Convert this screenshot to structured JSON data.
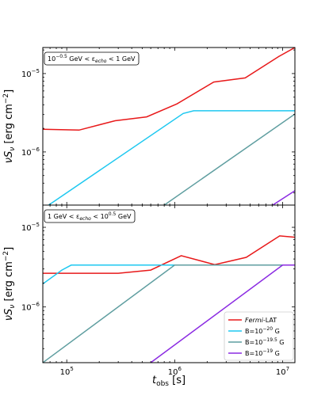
{
  "chart_data": [
    {
      "type": "line",
      "panel": "top",
      "xscale": "log",
      "yscale": "log",
      "xlim": [
        60000,
        13000000
      ],
      "ylim": [
        2.1e-07,
        2.15e-05
      ],
      "ylabel": "νS_ν [erg cm⁻²]",
      "ylabel_main": "νS",
      "ylabel_sub": "ν",
      "ylabel_unit": " [erg cm",
      "ylabel_sup": "−2",
      "ylabel_end": "]",
      "annotation": {
        "lead": "10",
        "lead_sup": "−0.5",
        "mid": " GeV  < ε",
        "mid_sub": "echo",
        "tail": " < 1 GeV"
      },
      "yticks": [
        {
          "value": 1e-06,
          "base": "10",
          "exp": "−6"
        },
        {
          "value": 1e-05,
          "base": "10",
          "exp": "−5"
        }
      ],
      "series": [
        {
          "name": "Fermi-LAT",
          "color": "#e8191a",
          "x": [
            60000,
            130000,
            280000,
            550000,
            1050000,
            2300000,
            4500000,
            9200000,
            13000000
          ],
          "y": [
            1.95e-06,
            1.9e-06,
            2.5e-06,
            2.8e-06,
            4.1e-06,
            7.8e-06,
            8.8e-06,
            1.65e-05,
            2.15e-05
          ]
        },
        {
          "name": "B=10⁻²⁰ G",
          "color": "#1ec8f0",
          "x": [
            68000,
            1200000,
            1500000,
            13000000
          ],
          "y": [
            2.1e-07,
            3.1e-06,
            3.35e-06,
            3.35e-06
          ]
        },
        {
          "name": "B=10⁻¹⁹·⁵ G",
          "color": "#5f9ea0",
          "x": [
            800000,
            13000000
          ],
          "y": [
            2.1e-07,
            3.05e-06
          ]
        },
        {
          "name": "B=10⁻¹⁹ G",
          "color": "#8b2be2",
          "x": [
            8100000,
            13000000
          ],
          "y": [
            2.1e-07,
            3.2e-07
          ]
        }
      ]
    },
    {
      "type": "line",
      "panel": "bottom",
      "xscale": "log",
      "yscale": "log",
      "xlim": [
        60000,
        13000000
      ],
      "ylim": [
        2e-07,
        1.9e-05
      ],
      "xlabel_main": "t",
      "xlabel_sub": "obs",
      "xlabel_unit": " [s]",
      "ylabel": "νS_ν [erg cm⁻²]",
      "ylabel_main": "νS",
      "ylabel_sub": "ν",
      "ylabel_unit": " [erg cm",
      "ylabel_sup": "−2",
      "ylabel_end": "]",
      "annotation": {
        "lead": "1 GeV  < ε",
        "lead_sup": "",
        "mid_sub": "echo",
        "tail": " < 10",
        "tail_sup": "0.5",
        "tail_end": " GeV"
      },
      "xticks": [
        {
          "value": 100000,
          "base": "10",
          "exp": "5"
        },
        {
          "value": 1000000,
          "base": "10",
          "exp": "6"
        },
        {
          "value": 10000000,
          "base": "10",
          "exp": "7"
        }
      ],
      "yticks": [
        {
          "value": 1e-06,
          "base": "10",
          "exp": "−6"
        },
        {
          "value": 1e-05,
          "base": "10",
          "exp": "−5"
        }
      ],
      "series": [
        {
          "name": "Fermi-LAT",
          "color": "#e8191a",
          "x": [
            60000,
            140000,
            300000,
            600000,
            1150000,
            2350000,
            4600000,
            9400000,
            13000000
          ],
          "y": [
            2.65e-06,
            2.65e-06,
            2.65e-06,
            2.9e-06,
            4.4e-06,
            3.4e-06,
            4.2e-06,
            7.8e-06,
            7.5e-06
          ]
        },
        {
          "name": "B=10⁻²⁰ G",
          "color": "#1ec8f0",
          "x": [
            60000,
            90000,
            110000,
            13000000
          ],
          "y": [
            1.95e-06,
            2.9e-06,
            3.35e-06,
            3.35e-06
          ]
        },
        {
          "name": "B=10⁻¹⁹·⁵ G",
          "color": "#5f9ea0",
          "x": [
            60000,
            1000000,
            13000000
          ],
          "y": [
            2e-07,
            3.35e-06,
            3.35e-06
          ]
        },
        {
          "name": "B=10⁻¹⁹ G",
          "color": "#8b2be2",
          "x": [
            600000,
            10000000,
            13000000
          ],
          "y": [
            2e-07,
            3.35e-06,
            3.35e-06
          ]
        }
      ]
    }
  ],
  "legend": {
    "placement": "lower-right",
    "entries": [
      {
        "color": "#e8191a",
        "italic": "Fermi",
        "text": "-LAT",
        "sup": "",
        "end": ""
      },
      {
        "color": "#1ec8f0",
        "italic": "",
        "text": "B=10",
        "sup": "−20",
        "end": " G"
      },
      {
        "color": "#5f9ea0",
        "italic": "",
        "text": "B=10",
        "sup": "−19.5",
        "end": " G"
      },
      {
        "color": "#8b2be2",
        "italic": "",
        "text": "B=10",
        "sup": "−19",
        "end": " G"
      }
    ]
  }
}
